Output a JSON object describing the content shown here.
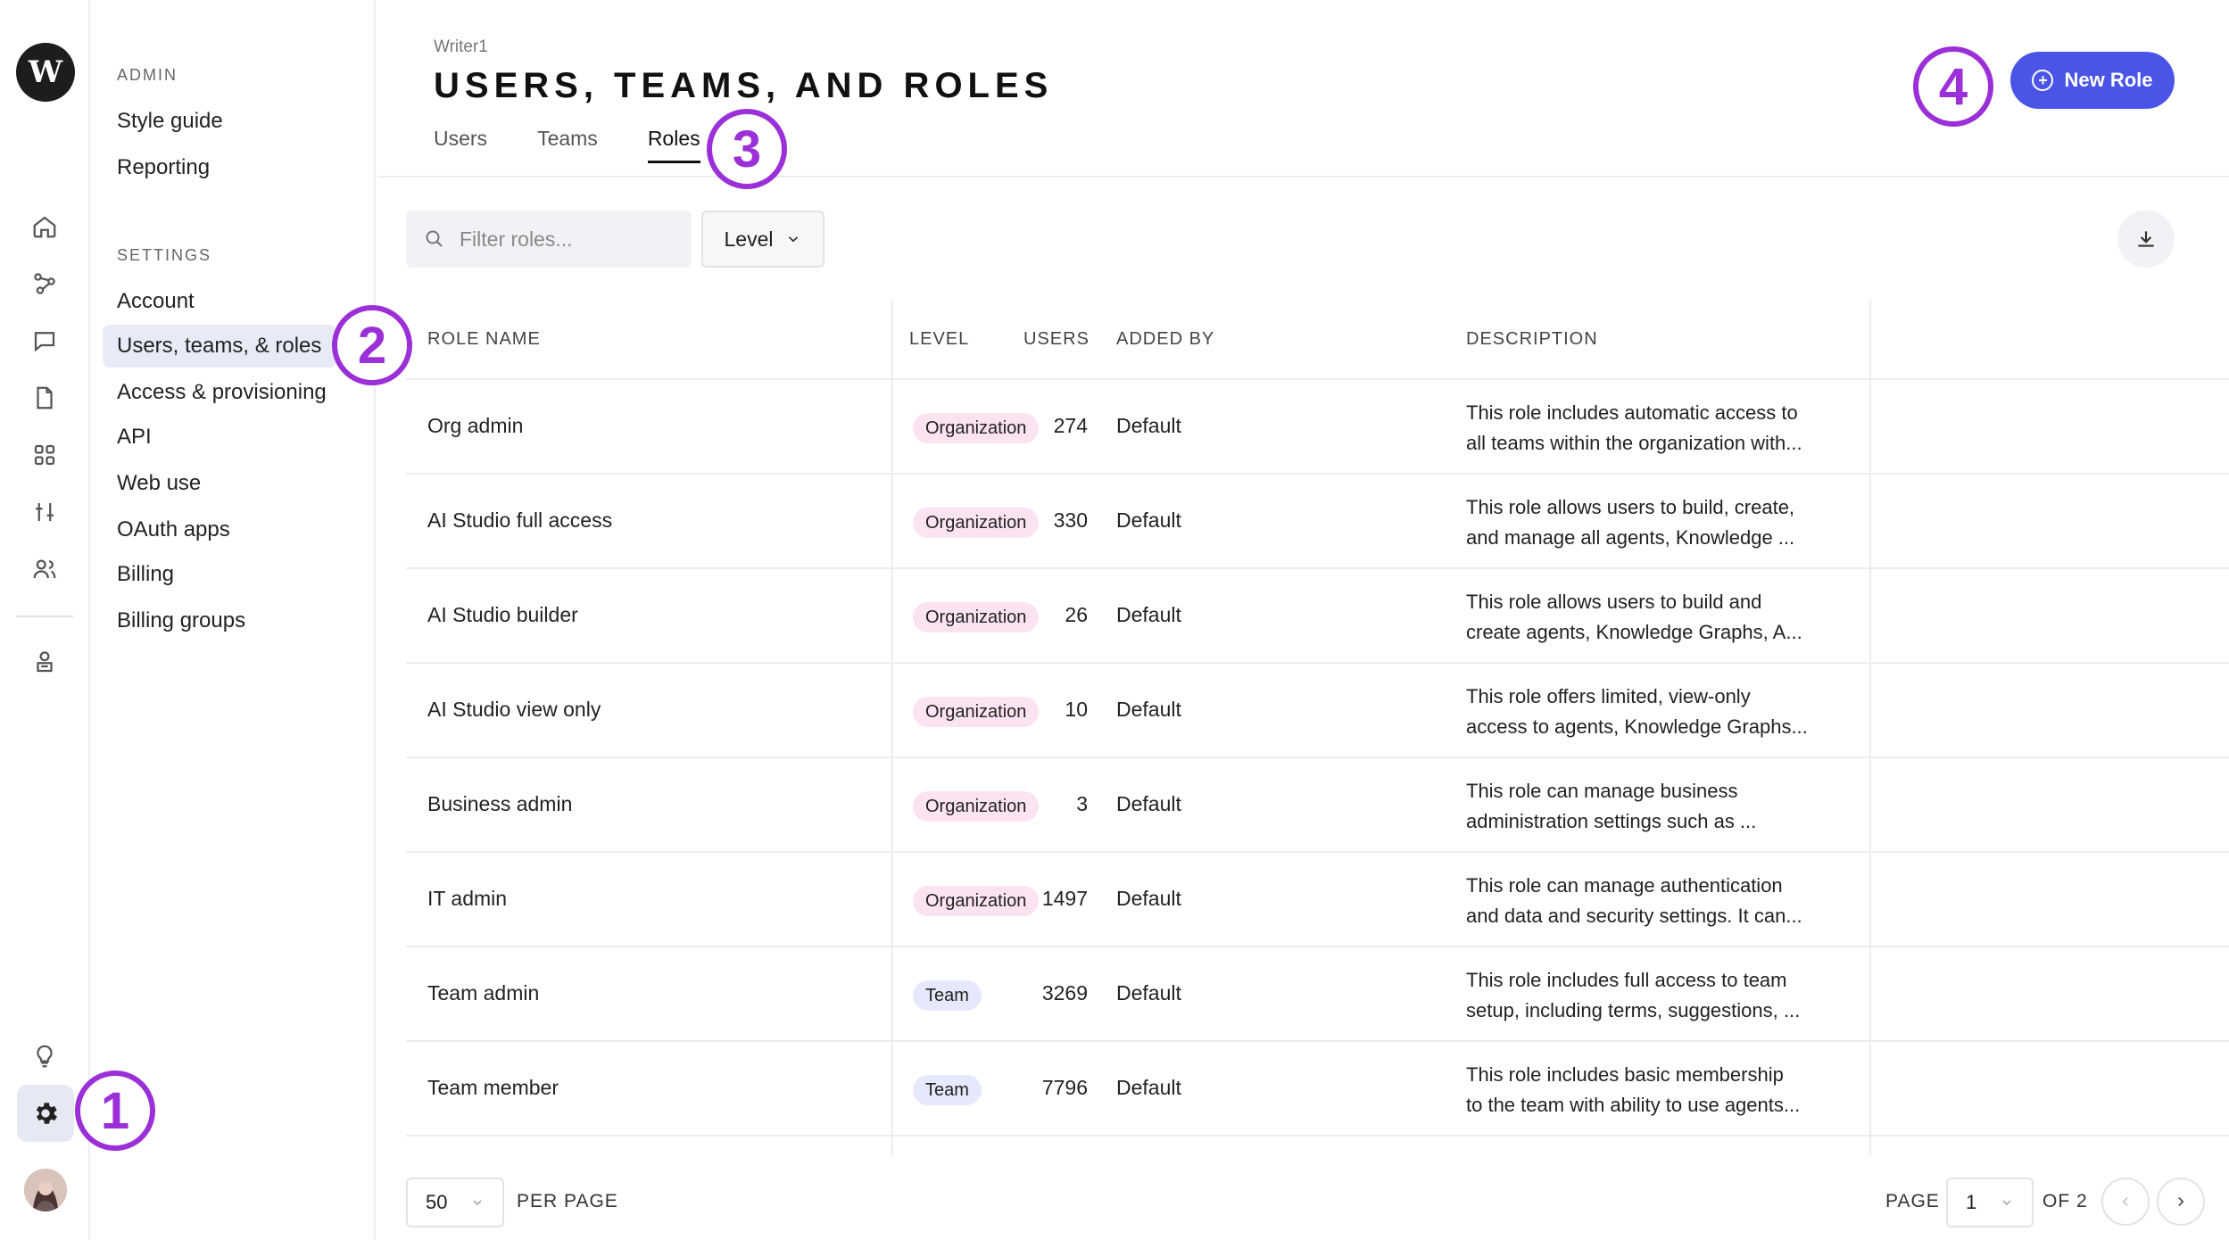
{
  "rail": {
    "logo": "W",
    "icons": [
      "home-icon",
      "workflow-icon",
      "chat-icon",
      "document-icon",
      "apps-icon",
      "sliders-icon",
      "users-icon",
      "agent-icon",
      "lightbulb-icon",
      "gear-icon",
      "avatar"
    ]
  },
  "nav": {
    "admin_heading": "ADMIN",
    "admin_items": [
      "Style guide",
      "Reporting"
    ],
    "settings_heading": "SETTINGS",
    "settings_items": [
      "Account",
      "Users, teams, & roles",
      "Access & provisioning",
      "API",
      "Web use",
      "OAuth apps",
      "Billing",
      "Billing groups"
    ],
    "active_item": "Users, teams, & roles"
  },
  "header": {
    "breadcrumb": "Writer1",
    "title": "USERS, TEAMS, AND ROLES",
    "tabs": [
      "Users",
      "Teams",
      "Roles"
    ],
    "active_tab": "Roles",
    "new_role_label": "New Role"
  },
  "toolbar": {
    "search_placeholder": "Filter roles...",
    "level_label": "Level"
  },
  "table": {
    "columns": [
      "ROLE NAME",
      "LEVEL",
      "USERS",
      "ADDED BY",
      "DESCRIPTION"
    ],
    "rows": [
      {
        "name": "Org admin",
        "level": "Organization",
        "users": "274",
        "added_by": "Default",
        "desc1": "This role includes automatic access to",
        "desc2": "all teams within the organization with..."
      },
      {
        "name": "AI Studio full access",
        "level": "Organization",
        "users": "330",
        "added_by": "Default",
        "desc1": "This role allows users to build, create,",
        "desc2": "and manage all agents, Knowledge ..."
      },
      {
        "name": "AI Studio builder",
        "level": "Organization",
        "users": "26",
        "added_by": "Default",
        "desc1": "This role allows users to build and",
        "desc2": "create agents, Knowledge Graphs, A..."
      },
      {
        "name": "AI Studio view only",
        "level": "Organization",
        "users": "10",
        "added_by": "Default",
        "desc1": "This role offers limited, view-only",
        "desc2": "access to agents, Knowledge Graphs..."
      },
      {
        "name": "Business admin",
        "level": "Organization",
        "users": "3",
        "added_by": "Default",
        "desc1": "This role can manage business",
        "desc2": "administration settings such as ..."
      },
      {
        "name": "IT admin",
        "level": "Organization",
        "users": "1497",
        "added_by": "Default",
        "desc1": "This role can manage authentication",
        "desc2": "and data and security settings. It can..."
      },
      {
        "name": "Team admin",
        "level": "Team",
        "users": "3269",
        "added_by": "Default",
        "desc1": "This role includes full access to team",
        "desc2": "setup, including terms, suggestions, ..."
      },
      {
        "name": "Team member",
        "level": "Team",
        "users": "7796",
        "added_by": "Default",
        "desc1": "This role includes basic membership",
        "desc2": "to the team with ability to use agents..."
      }
    ]
  },
  "pagination": {
    "per_page_value": "50",
    "per_page_label": "PER PAGE",
    "page_label": "PAGE",
    "page_value": "1",
    "of_label": "OF 2"
  },
  "markers": [
    "1",
    "2",
    "3",
    "4"
  ],
  "colors": {
    "accent": "#4a55e8",
    "marker": "#9b30d9",
    "org_badge": "#fbe3f1",
    "team_badge": "#e5e9fb",
    "active_nav": "#e7ebf8"
  }
}
